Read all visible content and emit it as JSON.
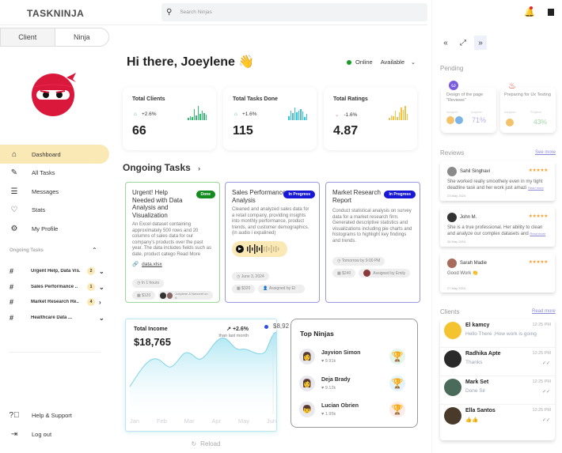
{
  "app": {
    "title": "TASKNINJA"
  },
  "toggle": {
    "client": "Client",
    "ninja": "Ninja"
  },
  "sidebar": {
    "items": [
      {
        "label": "Dashboard",
        "icon": "home-icon",
        "active": true
      },
      {
        "label": "All Tasks",
        "icon": "edit-icon"
      },
      {
        "label": "Messages",
        "icon": "message-icon"
      },
      {
        "label": "Stats",
        "icon": "heart-icon"
      },
      {
        "label": "My Profile",
        "icon": "profile-gear-icon"
      }
    ],
    "ongoing_header": "Ongoing Tasks",
    "ongoing": [
      {
        "label": "Urgent Help, Data Vis.",
        "badge": "2",
        "chevron": "⌄"
      },
      {
        "label": "Sales Performance ..",
        "badge": "1",
        "chevron": "⌄"
      },
      {
        "label": "Market Research Re..",
        "badge": "4",
        "chevron": "›"
      },
      {
        "label": "Healthcare Data ...",
        "badge": "",
        "chevron": "⌄"
      }
    ],
    "help": "Help & Support",
    "logout": "Log out"
  },
  "search": {
    "placeholder": "Search Ninjas"
  },
  "greeting": {
    "text": "Hi there,  Joeylene",
    "emoji": "👋"
  },
  "status": {
    "online": "Online",
    "availability": "Available"
  },
  "stats": [
    {
      "title": "Total Clients",
      "change": "+2.6%",
      "value": "66",
      "trend": "up",
      "color": "#2fbf71",
      "bars": [
        3,
        5,
        4,
        14,
        6,
        18,
        8,
        12,
        9,
        7
      ]
    },
    {
      "title": "Total Tasks Done",
      "change": "+1.6%",
      "value": "115",
      "trend": "up",
      "color": "#36c5e0",
      "bars": [
        5,
        12,
        9,
        16,
        10,
        12,
        14,
        11,
        4,
        8
      ]
    },
    {
      "title": "Total Ratings",
      "change": "-1.6%",
      "value": "4.87",
      "trend": "down",
      "color": "#f5c242",
      "bars": [
        3,
        6,
        5,
        12,
        4,
        10,
        16,
        13,
        18,
        8
      ]
    }
  ],
  "ongoing_tasks": {
    "title": "Ongoing Tasks",
    "cards": [
      {
        "title": "Urgent! Help Needed with Data Analysis and Visualization",
        "status": "Done",
        "status_color": "#128c1e",
        "border": "#9fd49a",
        "desc": "An Excel dataset containing approximately 500 rows and 20 columns of sales data for our company's products over the past year. The data includes fields such as date, product catego Read More",
        "attachment": "data.xlsx",
        "due": "In 1 hours",
        "price": "$120",
        "assigned": "Joeylene & Navneet  on it"
      },
      {
        "title": "Sales Performance Analysis",
        "status": "In Progress",
        "status_color": "#1717d6",
        "border": "#9a9ae0",
        "desc": "Cleaned and analyzed sales data for a retail company, providing insights into monthly performance, product trends, and customer demographics. (in audio i expalined)",
        "due": "June 3, 2024",
        "price": "$320",
        "assigned": "Assigned by El"
      },
      {
        "title": "Market Research Report",
        "status": "In Progress",
        "status_color": "#1717d6",
        "border": "#9a9ae0",
        "desc": "Conduct statistical analysis on survey data for a market research firm. Generated descriptive statistics and visualizations including pie charts and histograms to highlight key findings and trends.",
        "due": "Tomorrow by 9:00 PM",
        "price": "$240",
        "assigned": "Assigned by Emily"
      }
    ]
  },
  "income": {
    "title": "Total Income",
    "value": "$18,765",
    "change": "+2.6%",
    "change_sub": "than last month",
    "tooltip": "$8,92",
    "months": [
      "Jan",
      "Feb",
      "Mar",
      "Apr",
      "May",
      "Jun"
    ],
    "reload": "Reload"
  },
  "top_ninjas": {
    "title": "Top Ninjas",
    "items": [
      {
        "name": "Jayvion Simon",
        "likes": "9.91k",
        "trophy_color": "#1f9e4a",
        "trophy_bg": "#e5f5ea"
      },
      {
        "name": "Deja Brady",
        "likes": "9.12k",
        "trophy_color": "#1ba3cf",
        "trophy_bg": "#e3f4fa"
      },
      {
        "name": "Lucian Obrien",
        "likes": "1.95k",
        "trophy_color": "#e85a3a",
        "trophy_bg": "#fdece7"
      }
    ]
  },
  "right": {
    "pending_title": "Pending",
    "pending": [
      {
        "title": "Design of the page \"Reviews\"",
        "assigned_label": "Assigned",
        "progress_label": "progress",
        "progress": "71%",
        "progress_color": "#b3b0ef",
        "icon_color": "#7a5ce0"
      },
      {
        "title": "Preparing for Ux Testing",
        "assigned_label": "Assigned",
        "progress_label": "Progress",
        "progress": "43%",
        "progress_color": "#9fd9a6",
        "icon_color": "#e23a2a"
      }
    ],
    "reviews_title": "Reviews",
    "see_more": "See more",
    "reviews": [
      {
        "name": "Sahil Singhavi",
        "stars": "★★★★★",
        "text": "She worked really smoothely even in my tight deadline task and her work just amazi",
        "read_more": "Read more",
        "date": "23 May 2024"
      },
      {
        "name": "John M.",
        "stars": "★★★★★",
        "text": "She is a true professional. Her ability to clean and analyze our complex datasets and",
        "read_more": "Read more",
        "date": "28 May 2024"
      },
      {
        "name": "Sarah Madie",
        "stars": "★★★★★",
        "text": "Good Work 👏",
        "read_more": "",
        "date": "27 May 2024"
      }
    ],
    "clients_title": "Clients",
    "read_more": "Read more",
    "clients": [
      {
        "name": "El kamcy",
        "msg": "Hello There ,How work is  going",
        "time": "12:25 PM",
        "read": "",
        "color": "#f4c430"
      },
      {
        "name": "Radhika Apte",
        "msg": "Thanks",
        "time": "12:25 PM",
        "read": "✓✓",
        "color": "#2a2a2a"
      },
      {
        "name": "Mark Set",
        "msg": "Done Sir",
        "time": "12:25 PM",
        "read": "✓✓",
        "color": "#4a6a5a"
      },
      {
        "name": "Ella Santos",
        "msg": "👍👍",
        "time": "12:25 PM",
        "read": "✓✓",
        "color": "#4a3a2a"
      }
    ]
  }
}
